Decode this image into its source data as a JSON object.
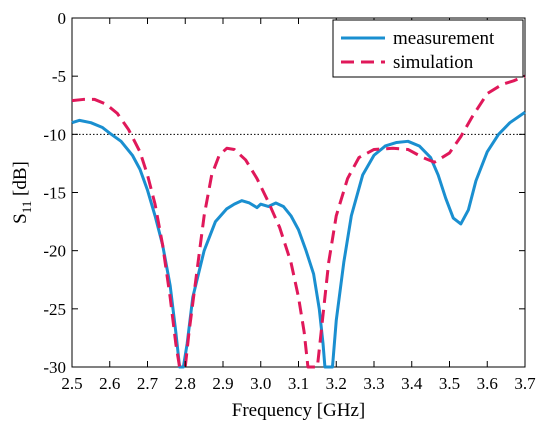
{
  "chart_data": {
    "type": "line",
    "title": "",
    "xlabel": "Frequency [GHz]",
    "ylabel_main": "S",
    "ylabel_sub": "11",
    "ylabel_unit": " [dB]",
    "xlim": [
      2.5,
      3.7
    ],
    "ylim": [
      -30,
      0
    ],
    "xticks": [
      "2.5",
      "2.6",
      "2.7",
      "2.8",
      "2.9",
      "3.0",
      "3.1",
      "3.2",
      "3.3",
      "3.4",
      "3.5",
      "3.6",
      "3.7"
    ],
    "yticks": [
      "0",
      "-5",
      "-10",
      "-15",
      "-20",
      "-25",
      "-30"
    ],
    "grid": false,
    "legend_position": "top-right",
    "reference_line": {
      "y": -10,
      "style": "dotted"
    },
    "series": [
      {
        "name": "measurement",
        "color": "#1a8fd0",
        "dash": "solid",
        "points": [
          [
            2.5,
            -9.0
          ],
          [
            2.52,
            -8.8
          ],
          [
            2.55,
            -9.0
          ],
          [
            2.58,
            -9.4
          ],
          [
            2.6,
            -9.9
          ],
          [
            2.63,
            -10.6
          ],
          [
            2.66,
            -11.8
          ],
          [
            2.68,
            -13.0
          ],
          [
            2.7,
            -14.8
          ],
          [
            2.72,
            -17.0
          ],
          [
            2.74,
            -19.5
          ],
          [
            2.76,
            -23.0
          ],
          [
            2.775,
            -27.0
          ],
          [
            2.785,
            -30.0
          ],
          [
            2.795,
            -30.0
          ],
          [
            2.805,
            -28.0
          ],
          [
            2.82,
            -24.0
          ],
          [
            2.85,
            -20.0
          ],
          [
            2.88,
            -17.5
          ],
          [
            2.91,
            -16.4
          ],
          [
            2.93,
            -16.0
          ],
          [
            2.95,
            -15.7
          ],
          [
            2.97,
            -15.9
          ],
          [
            2.99,
            -16.3
          ],
          [
            3.0,
            -16.0
          ],
          [
            3.02,
            -16.2
          ],
          [
            3.04,
            -15.9
          ],
          [
            3.06,
            -16.2
          ],
          [
            3.08,
            -17.0
          ],
          [
            3.1,
            -18.2
          ],
          [
            3.12,
            -20.0
          ],
          [
            3.14,
            -22.0
          ],
          [
            3.155,
            -25.0
          ],
          [
            3.165,
            -28.0
          ],
          [
            3.17,
            -30.0
          ],
          [
            3.19,
            -30.0
          ],
          [
            3.2,
            -26.0
          ],
          [
            3.22,
            -21.0
          ],
          [
            3.24,
            -17.0
          ],
          [
            3.27,
            -13.5
          ],
          [
            3.3,
            -11.8
          ],
          [
            3.33,
            -11.0
          ],
          [
            3.36,
            -10.7
          ],
          [
            3.39,
            -10.6
          ],
          [
            3.42,
            -11.0
          ],
          [
            3.45,
            -12.0
          ],
          [
            3.47,
            -13.5
          ],
          [
            3.49,
            -15.5
          ],
          [
            3.51,
            -17.2
          ],
          [
            3.53,
            -17.7
          ],
          [
            3.55,
            -16.5
          ],
          [
            3.57,
            -14.0
          ],
          [
            3.6,
            -11.5
          ],
          [
            3.63,
            -10.0
          ],
          [
            3.66,
            -9.0
          ],
          [
            3.7,
            -8.1
          ]
        ]
      },
      {
        "name": "simulation",
        "color": "#e0185a",
        "dash": "dashed",
        "points": [
          [
            2.5,
            -7.1
          ],
          [
            2.53,
            -7.0
          ],
          [
            2.56,
            -7.0
          ],
          [
            2.59,
            -7.4
          ],
          [
            2.62,
            -8.2
          ],
          [
            2.65,
            -9.6
          ],
          [
            2.68,
            -11.5
          ],
          [
            2.7,
            -13.5
          ],
          [
            2.72,
            -16.0
          ],
          [
            2.74,
            -19.5
          ],
          [
            2.76,
            -24.0
          ],
          [
            2.775,
            -28.0
          ],
          [
            2.785,
            -30.0
          ],
          [
            2.8,
            -30.0
          ],
          [
            2.81,
            -27.0
          ],
          [
            2.83,
            -22.0
          ],
          [
            2.85,
            -17.0
          ],
          [
            2.87,
            -13.5
          ],
          [
            2.89,
            -11.8
          ],
          [
            2.91,
            -11.2
          ],
          [
            2.93,
            -11.3
          ],
          [
            2.96,
            -12.2
          ],
          [
            2.99,
            -13.8
          ],
          [
            3.02,
            -15.8
          ],
          [
            3.05,
            -18.0
          ],
          [
            3.08,
            -21.0
          ],
          [
            3.1,
            -24.0
          ],
          [
            3.115,
            -27.0
          ],
          [
            3.125,
            -30.0
          ],
          [
            3.15,
            -30.0
          ],
          [
            3.16,
            -27.0
          ],
          [
            3.18,
            -21.0
          ],
          [
            3.2,
            -17.0
          ],
          [
            3.23,
            -13.8
          ],
          [
            3.26,
            -12.0
          ],
          [
            3.3,
            -11.3
          ],
          [
            3.35,
            -11.2
          ],
          [
            3.39,
            -11.3
          ],
          [
            3.43,
            -12.0
          ],
          [
            3.46,
            -12.4
          ],
          [
            3.5,
            -11.6
          ],
          [
            3.53,
            -10.2
          ],
          [
            3.56,
            -8.5
          ],
          [
            3.6,
            -6.5
          ],
          [
            3.64,
            -5.7
          ],
          [
            3.67,
            -5.4
          ],
          [
            3.7,
            -5.0
          ]
        ]
      }
    ]
  }
}
